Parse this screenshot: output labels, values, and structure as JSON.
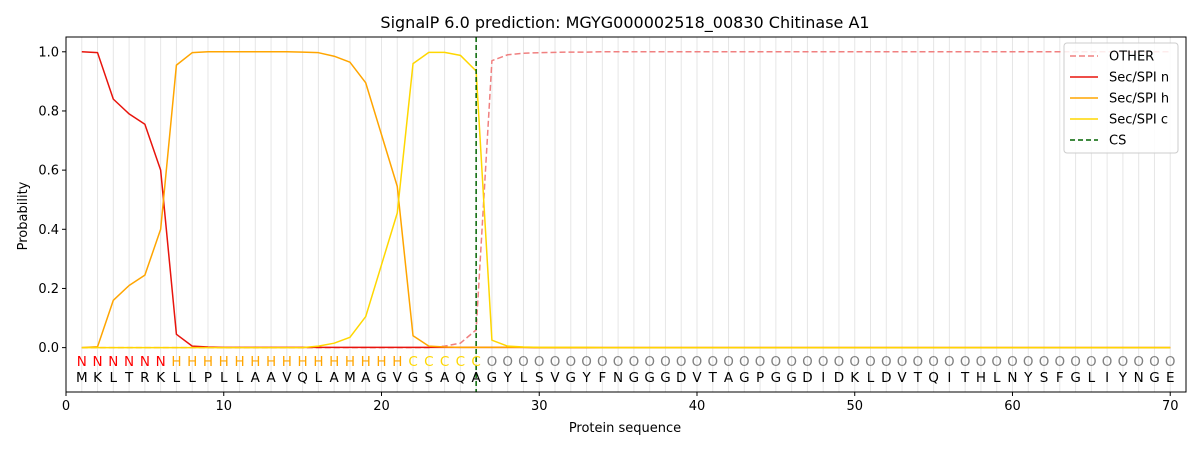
{
  "chart_data": {
    "type": "line",
    "title": "SignalP 6.0 prediction: MGYG000002518_00830 Chitinase A1",
    "xlabel": "Protein sequence",
    "ylabel": "Probability",
    "xlim": [
      0,
      71
    ],
    "ylim": [
      -0.15,
      1.05
    ],
    "xticks": [
      0,
      10,
      20,
      30,
      40,
      50,
      60,
      70
    ],
    "yticks": [
      0.0,
      0.2,
      0.4,
      0.6,
      0.8,
      1.0
    ],
    "xtick_labels": [
      "0",
      "10",
      "20",
      "30",
      "40",
      "50",
      "60",
      "70"
    ],
    "ytick_labels": [
      "0.0",
      "0.2",
      "0.4",
      "0.6",
      "0.8",
      "1.0"
    ],
    "grid": "vertical lines at each residue",
    "legend_position": "top-right",
    "cleavage_site": 26,
    "sequence": [
      "M",
      "K",
      "L",
      "T",
      "R",
      "K",
      "L",
      "L",
      "P",
      "L",
      "L",
      "A",
      "A",
      "V",
      "Q",
      "L",
      "A",
      "M",
      "A",
      "G",
      "V",
      "G",
      "S",
      "A",
      "Q",
      "A",
      "G",
      "Y",
      "L",
      "S",
      "V",
      "G",
      "Y",
      "F",
      "N",
      "G",
      "G",
      "G",
      "D",
      "V",
      "T",
      "A",
      "G",
      "P",
      "G",
      "G",
      "D",
      "I",
      "D",
      "K",
      "L",
      "D",
      "V",
      "T",
      "Q",
      "I",
      "T",
      "H",
      "L",
      "N",
      "Y",
      "S",
      "F",
      "G",
      "L",
      "I",
      "Y",
      "N",
      "G",
      "E"
    ],
    "labels": [
      "N",
      "N",
      "N",
      "N",
      "N",
      "N",
      "H",
      "H",
      "H",
      "H",
      "H",
      "H",
      "H",
      "H",
      "H",
      "H",
      "H",
      "H",
      "H",
      "H",
      "H",
      "C",
      "C",
      "C",
      "C",
      "C",
      "O",
      "O",
      "O",
      "O",
      "O",
      "O",
      "O",
      "O",
      "O",
      "O",
      "O",
      "O",
      "O",
      "O",
      "O",
      "O",
      "O",
      "O",
      "O",
      "O",
      "O",
      "O",
      "O",
      "O",
      "O",
      "O",
      "O",
      "O",
      "O",
      "O",
      "O",
      "O",
      "O",
      "O",
      "O",
      "O",
      "O",
      "O",
      "O",
      "O",
      "O",
      "O",
      "O",
      "O"
    ],
    "label_colors": {
      "N": "#ff0000",
      "H": "#ffa500",
      "C": "#ffd700",
      "O": "#808080"
    },
    "series": [
      {
        "name": "OTHER",
        "color": "#f08080",
        "dash": true,
        "values": [
          0,
          0,
          0,
          0,
          0,
          0,
          0,
          0,
          0,
          0,
          0,
          0,
          0,
          0,
          0,
          0,
          0,
          0,
          0,
          0,
          0,
          0,
          0,
          0.005,
          0.015,
          0.06,
          0.97,
          0.99,
          0.995,
          0.997,
          0.998,
          0.999,
          0.999,
          1,
          1,
          1,
          1,
          1,
          1,
          1,
          1,
          1,
          1,
          1,
          1,
          1,
          1,
          1,
          1,
          1,
          1,
          1,
          1,
          1,
          1,
          1,
          1,
          1,
          1,
          1,
          1,
          1,
          1,
          1,
          1,
          1,
          1,
          1,
          1,
          1
        ]
      },
      {
        "name": "Sec/SPI n",
        "color": "#e8140c",
        "dash": false,
        "values": [
          1.0,
          0.997,
          0.84,
          0.79,
          0.755,
          0.6,
          0.045,
          0.005,
          0.002,
          0.001,
          0.001,
          0.001,
          0.001,
          0.001,
          0.001,
          0.001,
          0.001,
          0.001,
          0.001,
          0.001,
          0.001,
          0.001,
          0.001,
          0.001,
          0.001,
          0.001,
          0.001,
          0.001,
          0.001,
          0,
          0,
          0,
          0,
          0,
          0,
          0,
          0,
          0,
          0,
          0,
          0,
          0,
          0,
          0,
          0,
          0,
          0,
          0,
          0,
          0,
          0,
          0,
          0,
          0,
          0,
          0,
          0,
          0,
          0,
          0,
          0,
          0,
          0,
          0,
          0,
          0,
          0,
          0,
          0,
          0
        ]
      },
      {
        "name": "Sec/SPI h",
        "color": "#ffa500",
        "dash": false,
        "values": [
          0,
          0.003,
          0.16,
          0.21,
          0.245,
          0.4,
          0.955,
          0.997,
          1.0,
          1.0,
          1.0,
          1.0,
          1.0,
          1.0,
          0.999,
          0.997,
          0.985,
          0.965,
          0.895,
          0.72,
          0.545,
          0.04,
          0.005,
          0.002,
          0.001,
          0.001,
          0.001,
          0.001,
          0.001,
          0,
          0,
          0,
          0,
          0,
          0,
          0,
          0,
          0,
          0,
          0,
          0,
          0,
          0,
          0,
          0,
          0,
          0,
          0,
          0,
          0,
          0,
          0,
          0,
          0,
          0,
          0,
          0,
          0,
          0,
          0,
          0,
          0,
          0,
          0,
          0,
          0,
          0,
          0,
          0,
          0
        ]
      },
      {
        "name": "Sec/SPI c",
        "color": "#ffd700",
        "dash": false,
        "values": [
          0,
          0,
          0,
          0,
          0,
          0,
          0,
          0,
          0,
          0,
          0,
          0,
          0,
          0,
          0,
          0.005,
          0.015,
          0.035,
          0.105,
          0.28,
          0.455,
          0.96,
          0.998,
          0.998,
          0.988,
          0.935,
          0.025,
          0.005,
          0.002,
          0.001,
          0.001,
          0.001,
          0.001,
          0,
          0,
          0,
          0,
          0,
          0,
          0,
          0,
          0,
          0,
          0,
          0,
          0,
          0,
          0,
          0,
          0,
          0,
          0,
          0,
          0,
          0,
          0,
          0,
          0,
          0,
          0,
          0,
          0,
          0,
          0,
          0,
          0,
          0,
          0,
          0,
          0
        ]
      }
    ],
    "cs_legend": {
      "name": "CS",
      "color": "#006400"
    }
  }
}
